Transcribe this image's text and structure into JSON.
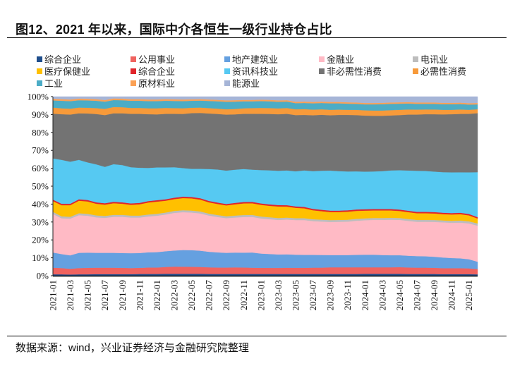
{
  "header": {
    "title": "图12、2021 年以来，国际中介各恒生一级行业持仓占比"
  },
  "footer": {
    "source": "数据来源：wind，兴业证券经济与金融研究院整理"
  },
  "chart_data": {
    "type": "area",
    "stacked": true,
    "normalized": true,
    "title": "2021 年以来，国际中介各恒生一级行业持仓占比",
    "xlabel": "",
    "ylabel": "",
    "ylim": [
      0,
      100
    ],
    "y_ticks": [
      "0%",
      "10%",
      "20%",
      "30%",
      "40%",
      "50%",
      "60%",
      "70%",
      "80%",
      "90%",
      "100%"
    ],
    "x_tick_labels": [
      "2021-01",
      "2021-03",
      "2021-05",
      "2021-07",
      "2021-09",
      "2021-11",
      "2022-01",
      "2022-03",
      "2022-05",
      "2022-07",
      "2022-09",
      "2022-11",
      "2023-01",
      "2023-03",
      "2023-05",
      "2023-07",
      "2023-09",
      "2023-11",
      "2024-01",
      "2024-03",
      "2024-05",
      "2024-07",
      "2024-09",
      "2024-11",
      "2025-01"
    ],
    "legend_position": "top",
    "grid": false,
    "x": [
      "2021-01",
      "2021-02",
      "2021-03",
      "2021-04",
      "2021-05",
      "2021-06",
      "2021-07",
      "2021-08",
      "2021-09",
      "2021-10",
      "2021-11",
      "2021-12",
      "2022-01",
      "2022-02",
      "2022-03",
      "2022-04",
      "2022-05",
      "2022-06",
      "2022-07",
      "2022-08",
      "2022-09",
      "2022-10",
      "2022-11",
      "2022-12",
      "2023-01",
      "2023-02",
      "2023-03",
      "2023-04",
      "2023-05",
      "2023-06",
      "2023-07",
      "2023-08",
      "2023-09",
      "2023-10",
      "2023-11",
      "2023-12",
      "2024-01",
      "2024-02",
      "2024-03",
      "2024-04",
      "2024-05",
      "2024-06",
      "2024-07",
      "2024-08",
      "2024-09",
      "2024-10",
      "2024-11",
      "2024-12",
      "2025-01",
      "2025-02"
    ],
    "series": [
      {
        "name": "综合企业",
        "color": "#1f4e8c",
        "values": [
          0.8,
          0.8,
          0.7,
          0.8,
          0.8,
          0.9,
          0.9,
          0.9,
          0.9,
          0.9,
          1.0,
          1.0,
          1.0,
          1.1,
          1.1,
          1.1,
          1.1,
          1.1,
          1.0,
          1.0,
          1.0,
          1.0,
          1.0,
          1.0,
          1.0,
          1.0,
          1.0,
          1.0,
          1.0,
          1.0,
          1.0,
          1.0,
          1.0,
          1.0,
          1.0,
          1.0,
          1.1,
          1.1,
          1.1,
          1.1,
          1.1,
          1.0,
          1.0,
          1.0,
          1.0,
          0.9,
          0.9,
          0.9,
          0.9,
          0.8
        ]
      },
      {
        "name": "公用事业",
        "color": "#f0635f",
        "values": [
          3.7,
          3.5,
          3.2,
          3.5,
          3.6,
          3.6,
          3.6,
          3.6,
          3.5,
          3.4,
          3.4,
          3.6,
          3.6,
          3.8,
          4.0,
          4.0,
          3.9,
          3.8,
          3.7,
          3.6,
          3.6,
          3.7,
          3.6,
          3.5,
          3.4,
          3.4,
          3.4,
          3.5,
          3.5,
          3.5,
          3.6,
          3.6,
          3.8,
          3.8,
          3.8,
          3.8,
          3.7,
          3.7,
          3.7,
          3.7,
          3.8,
          3.7,
          3.6,
          3.6,
          3.5,
          3.4,
          3.4,
          3.4,
          3.3,
          3.0
        ]
      },
      {
        "name": "地产建筑业",
        "color": "#65a0e0",
        "values": [
          8.5,
          7.8,
          7.5,
          8.5,
          8.5,
          8.3,
          8.3,
          8.3,
          8.3,
          8.3,
          8.3,
          8.5,
          8.6,
          8.8,
          9.0,
          9.3,
          9.3,
          9.1,
          8.7,
          8.5,
          8.3,
          8.3,
          8.3,
          8.5,
          8.0,
          7.8,
          7.6,
          7.6,
          7.5,
          7.4,
          7.3,
          7.2,
          7.0,
          7.0,
          7.0,
          7.1,
          7.2,
          7.2,
          7.0,
          6.9,
          6.8,
          6.7,
          6.6,
          6.5,
          6.3,
          6.1,
          5.8,
          5.6,
          5.2,
          4.2
        ]
      },
      {
        "name": "金融业",
        "color": "#ffbac5",
        "values": [
          21.5,
          20.0,
          20.5,
          21.0,
          20.6,
          19.8,
          19.5,
          20.1,
          20.2,
          19.9,
          19.8,
          20.0,
          20.3,
          20.5,
          21.0,
          21.2,
          21.0,
          20.8,
          20.2,
          19.8,
          19.5,
          19.6,
          19.9,
          19.9,
          19.6,
          19.5,
          19.4,
          19.6,
          19.7,
          19.8,
          19.2,
          19.0,
          18.8,
          18.9,
          19.0,
          19.4,
          19.6,
          19.8,
          20.0,
          20.2,
          20.1,
          19.8,
          19.5,
          19.6,
          19.8,
          20.0,
          20.1,
          20.3,
          20.4,
          20.5
        ]
      },
      {
        "name": "电讯业",
        "color": "#bdbdbd",
        "values": [
          1.2,
          1.1,
          1.0,
          1.1,
          1.1,
          1.1,
          1.1,
          1.1,
          1.1,
          1.1,
          1.1,
          1.1,
          1.1,
          1.1,
          1.1,
          1.1,
          1.1,
          1.1,
          1.1,
          1.1,
          1.1,
          1.1,
          1.1,
          1.1,
          1.1,
          1.1,
          1.1,
          1.1,
          1.1,
          1.1,
          1.1,
          1.1,
          1.1,
          1.1,
          1.1,
          1.1,
          1.1,
          1.1,
          1.1,
          1.1,
          1.1,
          1.1,
          1.1,
          1.1,
          1.1,
          1.1,
          1.1,
          1.2,
          1.2,
          1.3
        ]
      },
      {
        "name": "医疗保健业",
        "color": "#ffc000",
        "values": [
          6.0,
          6.2,
          6.5,
          7.0,
          6.9,
          6.5,
          6.3,
          6.5,
          6.2,
          6.0,
          6.3,
          6.7,
          6.8,
          6.6,
          6.6,
          6.8,
          6.8,
          6.6,
          6.3,
          6.2,
          6.1,
          6.3,
          6.5,
          6.5,
          6.5,
          6.4,
          6.5,
          6.2,
          5.9,
          5.6,
          5.1,
          4.8,
          4.6,
          4.5,
          4.6,
          4.5,
          4.4,
          4.3,
          4.3,
          4.2,
          4.0,
          3.9,
          3.8,
          3.8,
          3.7,
          3.6,
          3.6,
          3.6,
          3.4,
          2.8
        ]
      },
      {
        "name": "综合企业",
        "color": "#e0252b",
        "values": [
          0.8,
          0.8,
          0.8,
          0.8,
          0.8,
          0.8,
          0.8,
          0.8,
          0.8,
          0.8,
          0.8,
          0.8,
          0.8,
          0.8,
          0.8,
          0.8,
          0.8,
          0.8,
          0.8,
          0.8,
          0.8,
          0.8,
          0.8,
          0.8,
          0.8,
          0.8,
          0.8,
          0.8,
          0.8,
          0.8,
          0.8,
          0.8,
          0.8,
          0.8,
          0.8,
          0.8,
          0.8,
          0.8,
          0.8,
          0.8,
          0.8,
          0.8,
          0.8,
          0.8,
          0.8,
          0.8,
          0.8,
          0.8,
          0.8,
          0.8
        ]
      },
      {
        "name": "资讯科技业",
        "color": "#56c9f2",
        "values": [
          23.0,
          24.5,
          23.5,
          22.0,
          21.0,
          21.2,
          20.3,
          21.0,
          20.8,
          20.2,
          19.6,
          18.5,
          18.3,
          17.8,
          17.0,
          16.0,
          15.7,
          16.4,
          17.8,
          18.5,
          18.8,
          18.6,
          18.4,
          18.0,
          18.6,
          19.1,
          19.3,
          19.6,
          20.0,
          20.8,
          21.5,
          22.2,
          22.8,
          22.5,
          22.1,
          21.7,
          21.4,
          21.4,
          21.6,
          22.0,
          22.4,
          22.9,
          23.4,
          23.3,
          23.0,
          23.1,
          23.2,
          23.0,
          23.7,
          25.6
        ]
      },
      {
        "name": "非必需性消费",
        "color": "#737373",
        "values": [
          25.0,
          25.5,
          26.3,
          26.0,
          27.3,
          28.1,
          28.9,
          28.4,
          28.9,
          29.8,
          30.1,
          30.0,
          29.6,
          29.9,
          29.8,
          30.3,
          31.1,
          31.2,
          31.0,
          31.1,
          31.5,
          31.0,
          30.8,
          31.2,
          31.4,
          31.6,
          31.8,
          31.9,
          32.0,
          31.6,
          31.8,
          31.8,
          31.5,
          32.0,
          32.2,
          32.0,
          31.9,
          31.7,
          31.5,
          31.3,
          31.4,
          31.8,
          32.0,
          32.3,
          32.6,
          32.9,
          33.1,
          33.2,
          33.3,
          33.6
        ]
      },
      {
        "name": "必需性消费",
        "color": "#f79a3a",
        "values": [
          3.4,
          3.3,
          3.3,
          3.2,
          3.2,
          3.3,
          3.5,
          3.5,
          3.4,
          3.3,
          3.3,
          3.3,
          3.4,
          3.3,
          3.2,
          3.2,
          3.0,
          3.0,
          3.0,
          3.0,
          3.0,
          3.0,
          3.1,
          3.2,
          3.3,
          3.3,
          3.3,
          3.3,
          3.3,
          3.3,
          3.2,
          3.1,
          3.1,
          3.0,
          2.9,
          3.0,
          3.0,
          3.0,
          3.0,
          3.0,
          3.0,
          2.9,
          2.8,
          2.7,
          2.7,
          2.6,
          2.5,
          2.5,
          2.3,
          2.2
        ]
      },
      {
        "name": "工业",
        "color": "#4bacc6",
        "values": [
          4.0,
          4.2,
          4.2,
          4.1,
          4.1,
          4.1,
          4.0,
          3.9,
          3.9,
          4.0,
          4.0,
          4.0,
          4.0,
          4.0,
          4.0,
          4.0,
          3.9,
          3.9,
          4.0,
          4.1,
          4.2,
          4.1,
          3.9,
          3.8,
          3.8,
          3.8,
          3.7,
          3.6,
          3.5,
          3.5,
          3.6,
          3.6,
          3.7,
          3.6,
          3.5,
          3.4,
          3.4,
          3.5,
          3.6,
          3.6,
          3.5,
          3.4,
          3.3,
          3.2,
          3.2,
          3.2,
          3.2,
          3.1,
          3.0,
          2.8
        ]
      },
      {
        "name": "原材料业",
        "color": "#fba155",
        "values": [
          0.9,
          0.9,
          0.9,
          0.9,
          0.9,
          0.9,
          0.9,
          0.9,
          0.9,
          0.9,
          0.9,
          0.9,
          0.9,
          0.9,
          0.9,
          0.9,
          0.8,
          0.8,
          0.8,
          0.8,
          0.8,
          0.8,
          0.8,
          0.8,
          0.8,
          0.8,
          0.8,
          0.8,
          0.8,
          0.8,
          0.8,
          0.8,
          0.8,
          0.8,
          0.8,
          0.8,
          0.8,
          0.8,
          0.8,
          0.8,
          0.8,
          0.8,
          0.8,
          0.8,
          0.8,
          0.8,
          0.8,
          0.8,
          0.8,
          0.8
        ]
      },
      {
        "name": "能源业",
        "color": "#a6b5d7",
        "values": [
          1.2,
          1.4,
          1.6,
          1.1,
          1.2,
          1.4,
          1.9,
          1.0,
          1.1,
          1.4,
          1.4,
          1.6,
          1.6,
          1.4,
          1.5,
          1.6,
          1.5,
          1.4,
          1.6,
          1.8,
          2.1,
          2.0,
          1.8,
          1.8,
          1.7,
          1.8,
          2.1,
          2.0,
          2.9,
          2.8,
          3.0,
          2.8,
          3.0,
          3.0,
          3.2,
          3.3,
          3.6,
          3.6,
          3.5,
          3.3,
          3.2,
          3.1,
          3.3,
          3.3,
          3.3,
          3.5,
          3.5,
          3.4,
          3.7,
          3.6
        ]
      }
    ]
  }
}
